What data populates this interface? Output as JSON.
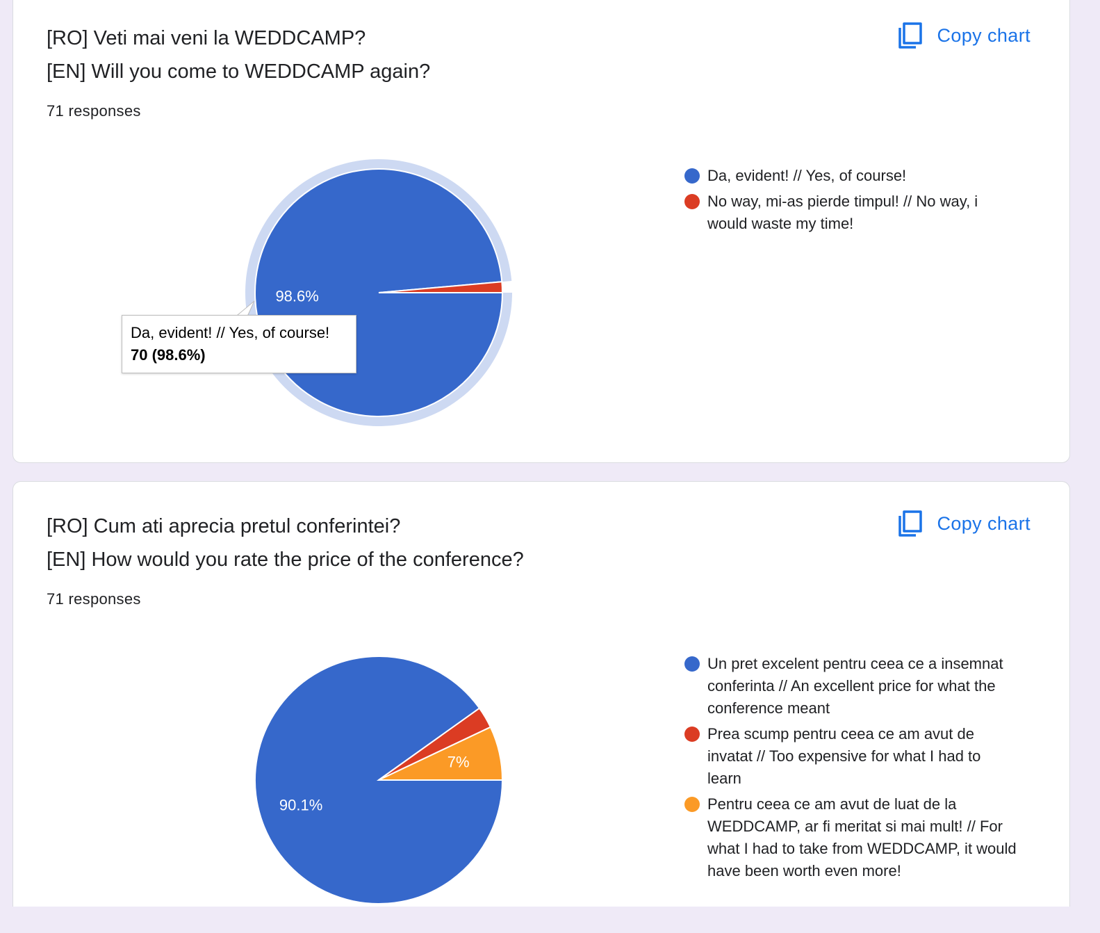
{
  "cards": [
    {
      "title_ro": "[RO] Veti mai veni la WEDDCAMP?",
      "title_en": "[EN] Will you come to WEDDCAMP again?",
      "responses": "71 responses",
      "copy_label": "Copy chart",
      "tooltip": {
        "label": "Da, evident! // Yes, of course!",
        "value": "70 (98.6%)"
      }
    },
    {
      "title_ro": "[RO] Cum ati aprecia pretul conferintei?",
      "title_en": "[EN] How would you rate the price of the conference?",
      "responses": "71 responses",
      "copy_label": "Copy chart"
    }
  ],
  "icons": {
    "copy": "copy-icon",
    "legend_dot": "circle"
  },
  "chart_data": [
    {
      "type": "pie",
      "title": "[RO] Veti mai veni la WEDDCAMP? [EN] Will you come to WEDDCAMP again?",
      "total": 71,
      "legend_position": "right",
      "highlighted_slice": 0,
      "slices": [
        {
          "label": "Da, evident! // Yes, of course!",
          "count": 70,
          "percent": 98.6,
          "percent_label": "98.6%",
          "color": "#3668cb"
        },
        {
          "label": "No way, mi-as pierde timpul! // No way, i would waste my time!",
          "count": 1,
          "percent": 1.4,
          "percent_label": "",
          "color": "#db3c23"
        }
      ]
    },
    {
      "type": "pie",
      "title": "[RO] Cum ati aprecia pretul conferintei? [EN] How would you rate the price of the conference?",
      "total": 71,
      "legend_position": "right",
      "slices": [
        {
          "label": "Un pret excelent pentru ceea ce a insemnat conferinta // An excellent price for what the conference meant",
          "count": 64,
          "percent": 90.1,
          "percent_label": "90.1%",
          "color": "#3668cb"
        },
        {
          "label": "Prea scump pentru ceea ce am avut de invatat // Too expensive for what I had to learn",
          "count": 2,
          "percent": 2.8,
          "percent_label": "",
          "color": "#db3c23"
        },
        {
          "label": "Pentru ceea ce am avut de luat de la WEDDCAMP, ar fi meritat si mai mult! // For what I had to take from WEDDCAMP, it would have been worth even more!",
          "count": 5,
          "percent": 7.0,
          "percent_label": "7%",
          "color": "#fb9a26"
        }
      ]
    }
  ]
}
